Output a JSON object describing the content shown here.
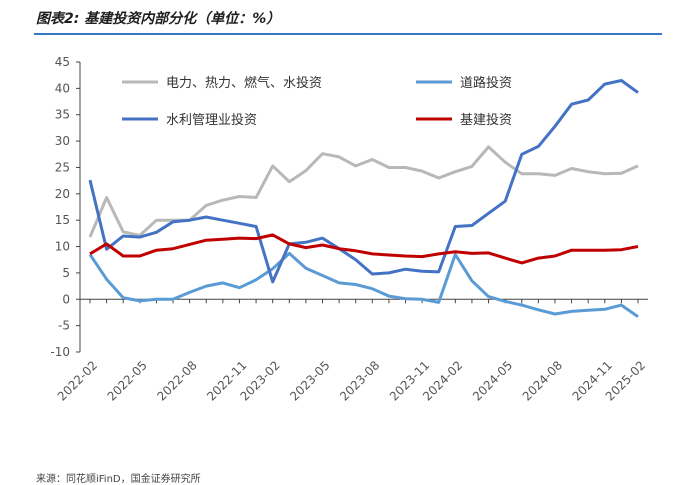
{
  "title": "图表2: 基建投资内部分化（单位：%）",
  "source": "来源：同花顺iFinD，国金证券研究所",
  "chart_data": {
    "type": "line",
    "ylim": [
      -10,
      45
    ],
    "yticks": [
      -10,
      -5,
      0,
      5,
      10,
      15,
      20,
      25,
      30,
      35,
      40,
      45
    ],
    "x": [
      "2022-02",
      "2022-03",
      "2022-04",
      "2022-05",
      "2022-06",
      "2022-07",
      "2022-08",
      "2022-09",
      "2022-10",
      "2022-11",
      "2022-12",
      "2023-02",
      "2023-03",
      "2023-04",
      "2023-05",
      "2023-06",
      "2023-07",
      "2023-08",
      "2023-09",
      "2023-10",
      "2023-11",
      "2023-12",
      "2024-02",
      "2024-03",
      "2024-04",
      "2024-05",
      "2024-06",
      "2024-07",
      "2024-08",
      "2024-09",
      "2024-10",
      "2024-11",
      "2024-12",
      "2025-02"
    ],
    "tick_labels": [
      "2022-02",
      "2022-05",
      "2022-08",
      "2022-11",
      "2023-02",
      "2023-05",
      "2023-08",
      "2023-11",
      "2024-02",
      "2024-05",
      "2024-08",
      "2024-11",
      "2025-02"
    ],
    "series": [
      {
        "name": "电力、热力、燃气、水投资",
        "color": "#b8b8b8",
        "values": [
          11.8,
          19.3,
          12.8,
          12.1,
          15.0,
          15.0,
          15.0,
          17.8,
          18.8,
          19.5,
          19.3,
          25.3,
          22.3,
          24.4,
          27.6,
          27.0,
          25.3,
          26.5,
          25.0,
          25.0,
          24.3,
          23.0,
          24.2,
          25.2,
          28.9,
          26.0,
          23.8,
          23.8,
          23.5,
          24.8,
          24.2,
          23.8,
          23.9,
          25.3
        ]
      },
      {
        "name": "道路投资",
        "color": "#5b9bd5",
        "values": [
          8.5,
          3.8,
          0.3,
          -0.3,
          0.0,
          0.0,
          1.3,
          2.5,
          3.1,
          2.2,
          3.7,
          5.8,
          8.7,
          5.9,
          4.5,
          3.1,
          2.8,
          2.0,
          0.6,
          0.1,
          0.0,
          -0.6,
          8.5,
          3.5,
          0.5,
          -0.4,
          -1.1,
          -2.0,
          -2.8,
          -2.3,
          -2.1,
          -1.9,
          -1.1,
          -3.3
        ]
      },
      {
        "name": "水利管理业投资",
        "color": "#4472c4",
        "values": [
          22.6,
          9.5,
          12.0,
          11.8,
          12.7,
          14.7,
          15.0,
          15.6,
          15.0,
          14.4,
          13.8,
          3.3,
          10.5,
          10.8,
          11.6,
          9.6,
          7.5,
          4.8,
          5.0,
          5.7,
          5.3,
          5.2,
          13.8,
          14.0,
          16.3,
          18.6,
          27.5,
          29.0,
          32.8,
          37.0,
          37.8,
          40.8,
          41.5,
          39.2
        ]
      },
      {
        "name": "基建投资",
        "color": "#c00000",
        "values": [
          8.6,
          10.5,
          8.2,
          8.2,
          9.3,
          9.6,
          10.4,
          11.2,
          11.4,
          11.6,
          11.5,
          12.2,
          10.5,
          9.8,
          10.3,
          9.6,
          9.2,
          8.6,
          8.4,
          8.2,
          8.1,
          8.6,
          9.0,
          8.7,
          8.8,
          7.8,
          6.9,
          7.8,
          8.2,
          9.3,
          9.3,
          9.3,
          9.4,
          10.0
        ]
      }
    ],
    "legend": [
      "电力、热力、燃气、水投资",
      "道路投资",
      "水利管理业投资",
      "基建投资"
    ],
    "grid": false
  }
}
